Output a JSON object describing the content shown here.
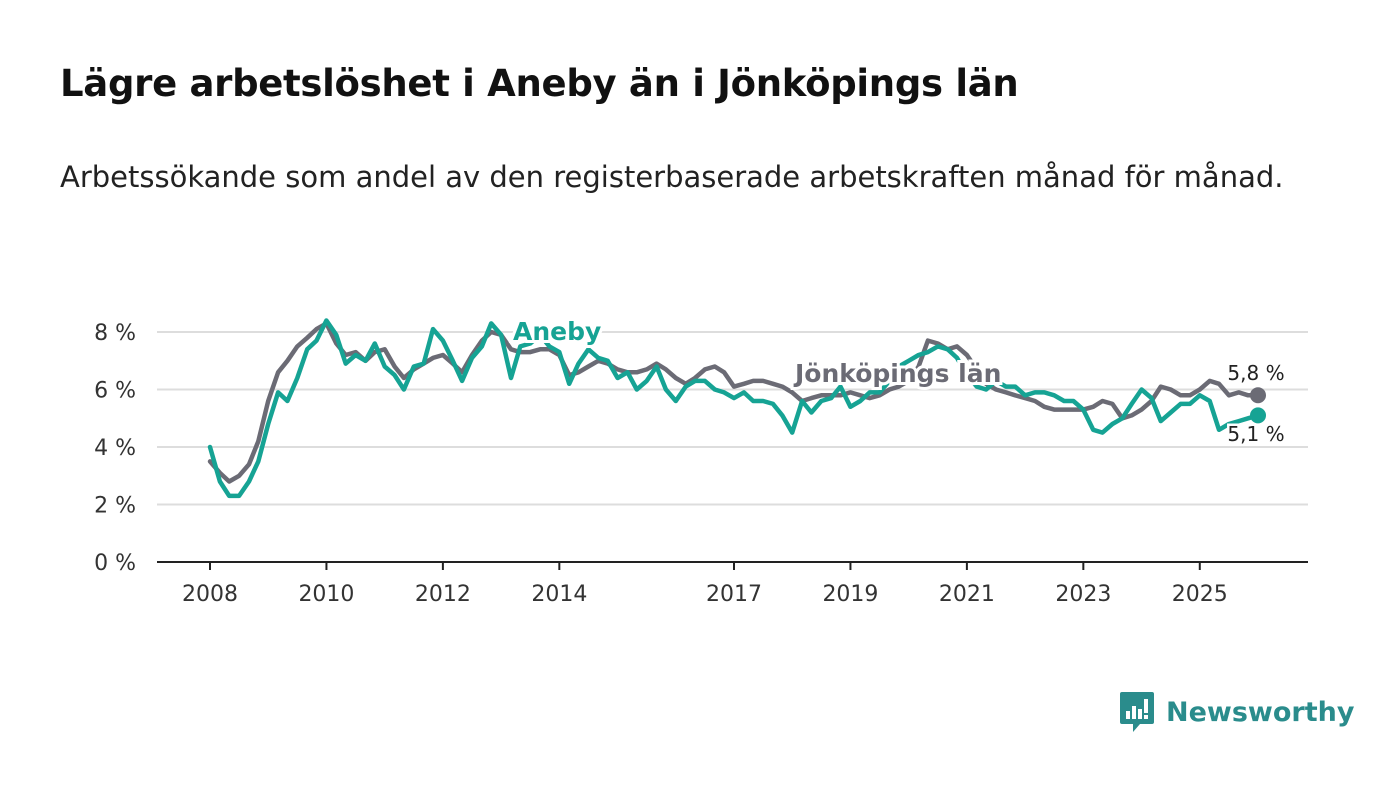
{
  "header": {
    "title": "Lägre arbetslöshet i Aneby än i Jönköpings län",
    "subtitle": "Arbetssökande som andel av den registerbaserade arbetskraften månad för månad."
  },
  "brand": {
    "name": "Newsworthy",
    "icon": "newsworthy-logo-icon",
    "color": "#2a8c8c"
  },
  "colors": {
    "aneby": "#16a394",
    "lan": "#6b6b75",
    "grid": "#dddddd",
    "axis": "#222222"
  },
  "chart_data": {
    "type": "line",
    "title": "Lägre arbetslöshet i Aneby än i Jönköpings län",
    "xlabel": "",
    "ylabel": "",
    "ylim": [
      0,
      8
    ],
    "xlim": [
      2008,
      2026
    ],
    "x_ticks": [
      2008,
      2010,
      2012,
      2014,
      2017,
      2019,
      2021,
      2023,
      2025
    ],
    "y_ticks": [
      0,
      2,
      4,
      6,
      8
    ],
    "y_tick_labels": [
      "0 %",
      "2 %",
      "4 %",
      "6 %",
      "8 %"
    ],
    "grid": true,
    "series": [
      {
        "name": "Jönköpings län",
        "color": "#6b6b75",
        "label": "Jönköpings län",
        "end_label": "5,8 %",
        "x": [
          2008.0,
          2008.17,
          2008.33,
          2008.5,
          2008.67,
          2008.83,
          2009.0,
          2009.17,
          2009.33,
          2009.5,
          2009.67,
          2009.83,
          2010.0,
          2010.17,
          2010.33,
          2010.5,
          2010.67,
          2010.83,
          2011.0,
          2011.17,
          2011.33,
          2011.5,
          2011.67,
          2011.83,
          2012.0,
          2012.17,
          2012.33,
          2012.5,
          2012.67,
          2012.83,
          2013.0,
          2013.17,
          2013.33,
          2013.5,
          2013.67,
          2013.83,
          2014.0,
          2014.17,
          2014.33,
          2014.5,
          2014.67,
          2014.83,
          2015.0,
          2015.17,
          2015.33,
          2015.5,
          2015.67,
          2015.83,
          2016.0,
          2016.17,
          2016.33,
          2016.5,
          2016.67,
          2016.83,
          2017.0,
          2017.17,
          2017.33,
          2017.5,
          2017.67,
          2017.83,
          2018.0,
          2018.17,
          2018.33,
          2018.5,
          2018.67,
          2018.83,
          2019.0,
          2019.17,
          2019.33,
          2019.5,
          2019.67,
          2019.83,
          2020.0,
          2020.17,
          2020.33,
          2020.5,
          2020.67,
          2020.83,
          2021.0,
          2021.17,
          2021.33,
          2021.5,
          2021.67,
          2021.83,
          2022.0,
          2022.17,
          2022.33,
          2022.5,
          2022.67,
          2022.83,
          2023.0,
          2023.17,
          2023.33,
          2023.5,
          2023.67,
          2023.83,
          2024.0,
          2024.17,
          2024.33,
          2024.5,
          2024.67,
          2024.83,
          2025.0,
          2025.17,
          2025.33,
          2025.5,
          2025.67,
          2025.83,
          2026.0
        ],
        "values": [
          3.5,
          3.1,
          2.8,
          3.0,
          3.4,
          4.2,
          5.6,
          6.6,
          7.0,
          7.5,
          7.8,
          8.1,
          8.3,
          7.6,
          7.2,
          7.3,
          7.0,
          7.3,
          7.4,
          6.8,
          6.4,
          6.7,
          6.9,
          7.1,
          7.2,
          6.9,
          6.6,
          7.2,
          7.7,
          8.0,
          7.9,
          7.4,
          7.3,
          7.3,
          7.4,
          7.4,
          7.2,
          6.5,
          6.6,
          6.8,
          7.0,
          6.9,
          6.7,
          6.6,
          6.6,
          6.7,
          6.9,
          6.7,
          6.4,
          6.2,
          6.4,
          6.7,
          6.8,
          6.6,
          6.1,
          6.2,
          6.3,
          6.3,
          6.2,
          6.1,
          5.9,
          5.6,
          5.7,
          5.8,
          5.8,
          5.8,
          5.9,
          5.8,
          5.7,
          5.8,
          6.0,
          6.1,
          6.3,
          6.8,
          7.7,
          7.6,
          7.4,
          7.5,
          7.2,
          6.7,
          6.2,
          6.0,
          5.9,
          5.8,
          5.7,
          5.6,
          5.4,
          5.3,
          5.3,
          5.3,
          5.3,
          5.4,
          5.6,
          5.5,
          5.0,
          5.1,
          5.3,
          5.6,
          6.1,
          6.0,
          5.8,
          5.8,
          6.0,
          6.3,
          6.2,
          5.8,
          5.9,
          5.8,
          5.8
        ]
      },
      {
        "name": "Aneby",
        "color": "#16a394",
        "label": "Aneby",
        "end_label": "5,1 %",
        "x": [
          2008.0,
          2008.17,
          2008.33,
          2008.5,
          2008.67,
          2008.83,
          2009.0,
          2009.17,
          2009.33,
          2009.5,
          2009.67,
          2009.83,
          2010.0,
          2010.17,
          2010.33,
          2010.5,
          2010.67,
          2010.83,
          2011.0,
          2011.17,
          2011.33,
          2011.5,
          2011.67,
          2011.83,
          2012.0,
          2012.17,
          2012.33,
          2012.5,
          2012.67,
          2012.83,
          2013.0,
          2013.17,
          2013.33,
          2013.5,
          2013.67,
          2013.83,
          2014.0,
          2014.17,
          2014.33,
          2014.5,
          2014.67,
          2014.83,
          2015.0,
          2015.17,
          2015.33,
          2015.5,
          2015.67,
          2015.83,
          2016.0,
          2016.17,
          2016.33,
          2016.5,
          2016.67,
          2016.83,
          2017.0,
          2017.17,
          2017.33,
          2017.5,
          2017.67,
          2017.83,
          2018.0,
          2018.17,
          2018.33,
          2018.5,
          2018.67,
          2018.83,
          2019.0,
          2019.17,
          2019.33,
          2019.5,
          2019.67,
          2019.83,
          2020.0,
          2020.17,
          2020.33,
          2020.5,
          2020.67,
          2020.83,
          2021.0,
          2021.17,
          2021.33,
          2021.5,
          2021.67,
          2021.83,
          2022.0,
          2022.17,
          2022.33,
          2022.5,
          2022.67,
          2022.83,
          2023.0,
          2023.17,
          2023.33,
          2023.5,
          2023.67,
          2023.83,
          2024.0,
          2024.17,
          2024.33,
          2024.5,
          2024.67,
          2024.83,
          2025.0,
          2025.17,
          2025.33,
          2025.5,
          2025.67,
          2025.83,
          2026.0
        ],
        "values": [
          4.0,
          2.8,
          2.3,
          2.3,
          2.8,
          3.5,
          4.8,
          5.9,
          5.6,
          6.4,
          7.4,
          7.7,
          8.4,
          7.9,
          6.9,
          7.2,
          7.0,
          7.6,
          6.8,
          6.5,
          6.0,
          6.8,
          6.9,
          8.1,
          7.7,
          7.0,
          6.3,
          7.1,
          7.5,
          8.3,
          7.9,
          6.4,
          7.5,
          7.6,
          7.9,
          7.5,
          7.3,
          6.2,
          6.9,
          7.4,
          7.1,
          7.0,
          6.4,
          6.6,
          6.0,
          6.3,
          6.8,
          6.0,
          5.6,
          6.1,
          6.3,
          6.3,
          6.0,
          5.9,
          5.7,
          5.9,
          5.6,
          5.6,
          5.5,
          5.1,
          4.5,
          5.6,
          5.2,
          5.6,
          5.7,
          6.1,
          5.4,
          5.6,
          5.9,
          5.9,
          6.3,
          6.8,
          7.0,
          7.2,
          7.3,
          7.5,
          7.4,
          7.1,
          6.5,
          6.1,
          6.0,
          6.3,
          6.1,
          6.1,
          5.8,
          5.9,
          5.9,
          5.8,
          5.6,
          5.6,
          5.3,
          4.6,
          4.5,
          4.8,
          5.0,
          5.5,
          6.0,
          5.7,
          4.9,
          5.2,
          5.5,
          5.5,
          5.8,
          5.6,
          4.6,
          4.8,
          4.9,
          5.0,
          5.1
        ]
      }
    ]
  }
}
